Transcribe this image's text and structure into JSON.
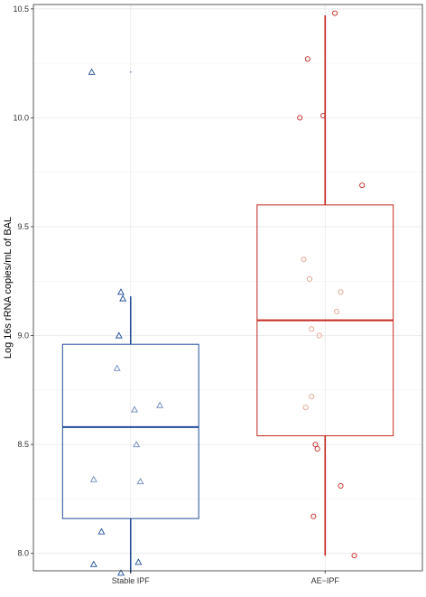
{
  "chart_data": {
    "type": "box",
    "title": "",
    "xlabel": "",
    "ylabel": "Log 16s rRNA copies/mL of BAL",
    "ylim": [
      7.92,
      10.52
    ],
    "yticks": [
      8.0,
      8.5,
      9.0,
      9.5,
      10.0,
      10.5
    ],
    "ytick_labels": [
      "8.0",
      "8.5",
      "9.0",
      "9.5",
      "10.0",
      "10.5"
    ],
    "grid": true,
    "categories": [
      "Stable IPF",
      "AE−IPF"
    ],
    "series": [
      {
        "category": "Stable IPF",
        "color": "#1f4e96",
        "light_color": "#6b86bd",
        "marker": "triangle",
        "box": {
          "whisker_low": 7.91,
          "q1": 8.16,
          "median": 8.58,
          "q3": 8.96,
          "whisker_high": 9.18,
          "outliers": [
            10.21
          ]
        },
        "points": [
          {
            "jitter": -0.2,
            "y": 10.21
          },
          {
            "jitter": -0.05,
            "y": 9.2
          },
          {
            "jitter": -0.04,
            "y": 9.17
          },
          {
            "jitter": -0.06,
            "y": 9.0
          },
          {
            "jitter": -0.07,
            "y": 8.85
          },
          {
            "jitter": 0.15,
            "y": 8.68
          },
          {
            "jitter": 0.02,
            "y": 8.66
          },
          {
            "jitter": 0.03,
            "y": 8.5
          },
          {
            "jitter": -0.19,
            "y": 8.34
          },
          {
            "jitter": 0.05,
            "y": 8.33
          },
          {
            "jitter": -0.15,
            "y": 8.1
          },
          {
            "jitter": -0.19,
            "y": 7.95
          },
          {
            "jitter": 0.04,
            "y": 7.96
          },
          {
            "jitter": -0.05,
            "y": 7.91
          }
        ]
      },
      {
        "category": "AE−IPF",
        "color": "#c4281f",
        "light_color": "#e3a08a",
        "marker": "circle",
        "box": {
          "whisker_low": 7.99,
          "q1": 8.54,
          "median": 9.07,
          "q3": 9.6,
          "whisker_high": 10.47,
          "outliers": []
        },
        "points": [
          {
            "jitter": 0.05,
            "y": 10.48
          },
          {
            "jitter": -0.09,
            "y": 10.27
          },
          {
            "jitter": -0.01,
            "y": 10.01
          },
          {
            "jitter": -0.13,
            "y": 10.0
          },
          {
            "jitter": 0.19,
            "y": 9.69
          },
          {
            "jitter": -0.11,
            "y": 9.35
          },
          {
            "jitter": -0.08,
            "y": 9.26
          },
          {
            "jitter": 0.08,
            "y": 9.2
          },
          {
            "jitter": 0.06,
            "y": 9.11
          },
          {
            "jitter": -0.07,
            "y": 9.03
          },
          {
            "jitter": -0.03,
            "y": 9.0
          },
          {
            "jitter": -0.07,
            "y": 8.72
          },
          {
            "jitter": -0.1,
            "y": 8.67
          },
          {
            "jitter": -0.05,
            "y": 8.5
          },
          {
            "jitter": -0.04,
            "y": 8.48
          },
          {
            "jitter": 0.08,
            "y": 8.31
          },
          {
            "jitter": -0.06,
            "y": 8.17
          },
          {
            "jitter": 0.15,
            "y": 7.99
          }
        ]
      }
    ]
  }
}
